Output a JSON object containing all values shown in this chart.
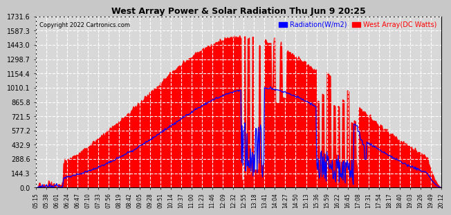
{
  "title": "West Array Power & Solar Radiation Thu Jun 9 20:25",
  "copyright": "Copyright 2022 Cartronics.com",
  "legend_radiation": "Radiation(W/m2)",
  "legend_west": "West Array(DC Watts)",
  "radiation_color": "blue",
  "west_fill_color": "red",
  "background_color": "#c8c8c8",
  "plot_bg_color": "#d8d8d8",
  "grid_color": "white",
  "yticks": [
    0.0,
    144.3,
    288.6,
    432.9,
    577.2,
    721.5,
    865.8,
    1010.1,
    1154.4,
    1298.7,
    1443.0,
    1587.3,
    1731.6
  ],
  "ymax": 1731.6,
  "xtick_labels": [
    "05:15",
    "05:38",
    "06:01",
    "06:24",
    "06:47",
    "07:10",
    "07:33",
    "07:56",
    "08:19",
    "08:42",
    "09:05",
    "09:28",
    "09:51",
    "10:14",
    "10:37",
    "11:00",
    "11:23",
    "11:46",
    "12:09",
    "12:32",
    "12:55",
    "13:18",
    "13:41",
    "14:04",
    "14:27",
    "14:50",
    "15:13",
    "15:36",
    "15:59",
    "16:22",
    "16:45",
    "17:08",
    "17:31",
    "17:54",
    "18:17",
    "18:40",
    "19:03",
    "19:26",
    "19:49",
    "20:12"
  ]
}
